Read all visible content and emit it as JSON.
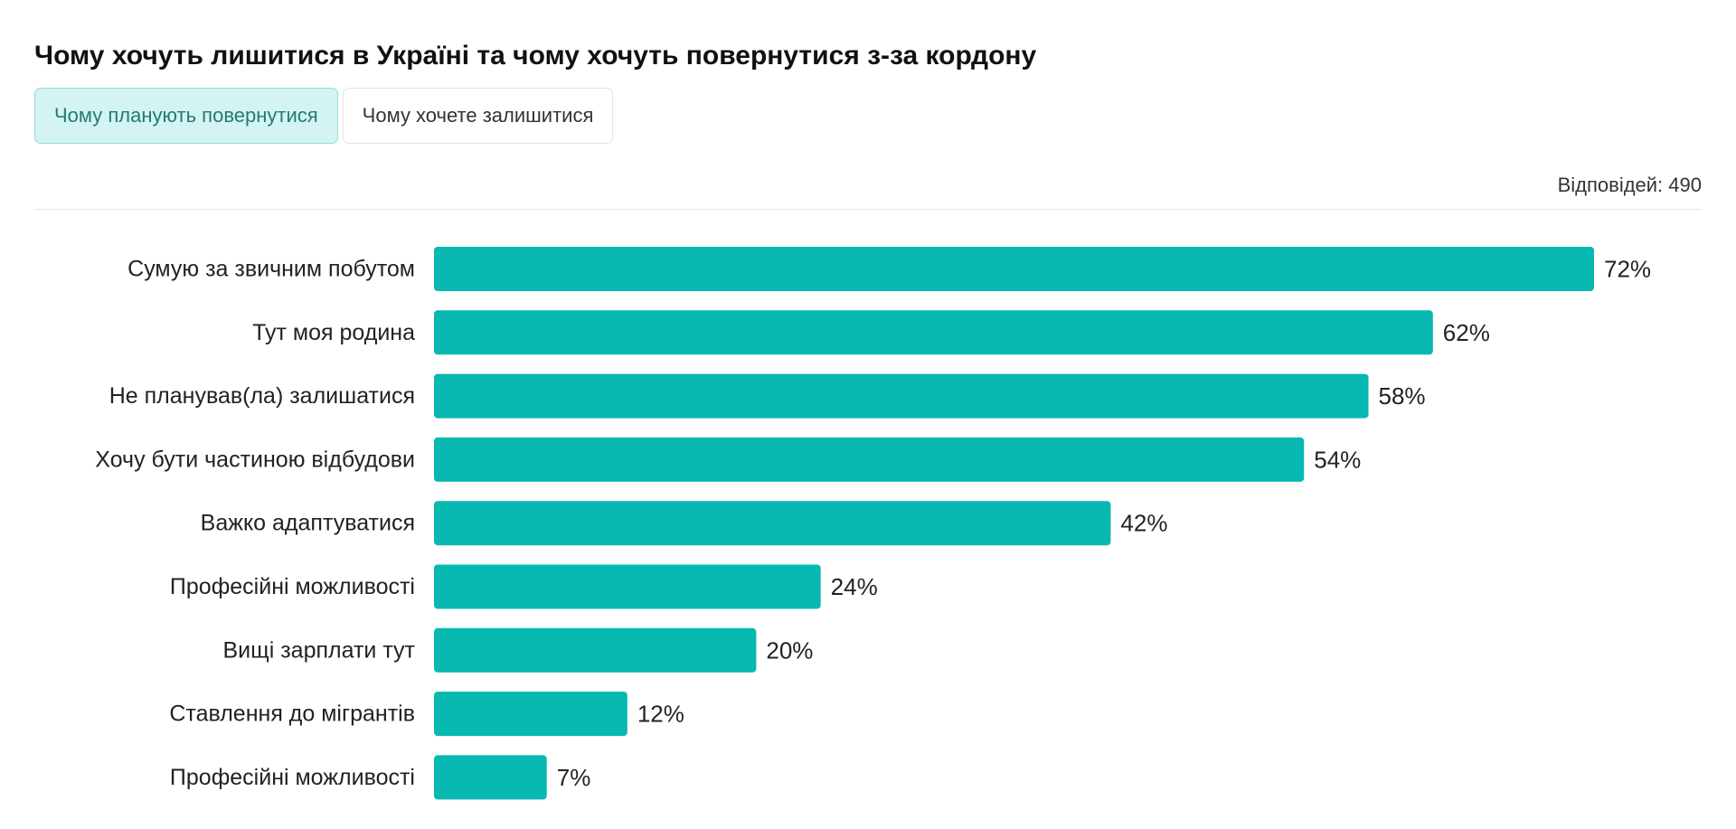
{
  "page": {
    "title": "Чому хочуть лишитися в Україні та чому хочуть повернутися з-за кордону",
    "tabs": [
      {
        "label": "Чому планують повернутися",
        "active": true
      },
      {
        "label": "Чому хочете залишитися",
        "active": false
      }
    ],
    "responses_label": "Відповідей: 490"
  },
  "colors": {
    "bar": "#07b9b0",
    "active_tab_bg": "#d3f4f2",
    "active_tab_text": "#247a74"
  },
  "chart_data": {
    "type": "bar",
    "orientation": "horizontal",
    "categories": [
      "Сумую за звичним побутом",
      "Тут моя родина",
      "Не планував(ла) залишатися",
      "Хочу бути частиною відбудови",
      "Важко адаптуватися",
      "Професійні можливості",
      "Вищі зарплати тут",
      "Ставлення до мігрантів",
      "Професійні можливості"
    ],
    "values": [
      72,
      62,
      58,
      54,
      42,
      24,
      20,
      12,
      7
    ],
    "value_labels": [
      "72%",
      "62%",
      "58%",
      "54%",
      "42%",
      "24%",
      "20%",
      "12%",
      "7%"
    ],
    "unit": "%",
    "xlim": [
      0,
      72
    ],
    "grid": false,
    "legend": "none"
  }
}
